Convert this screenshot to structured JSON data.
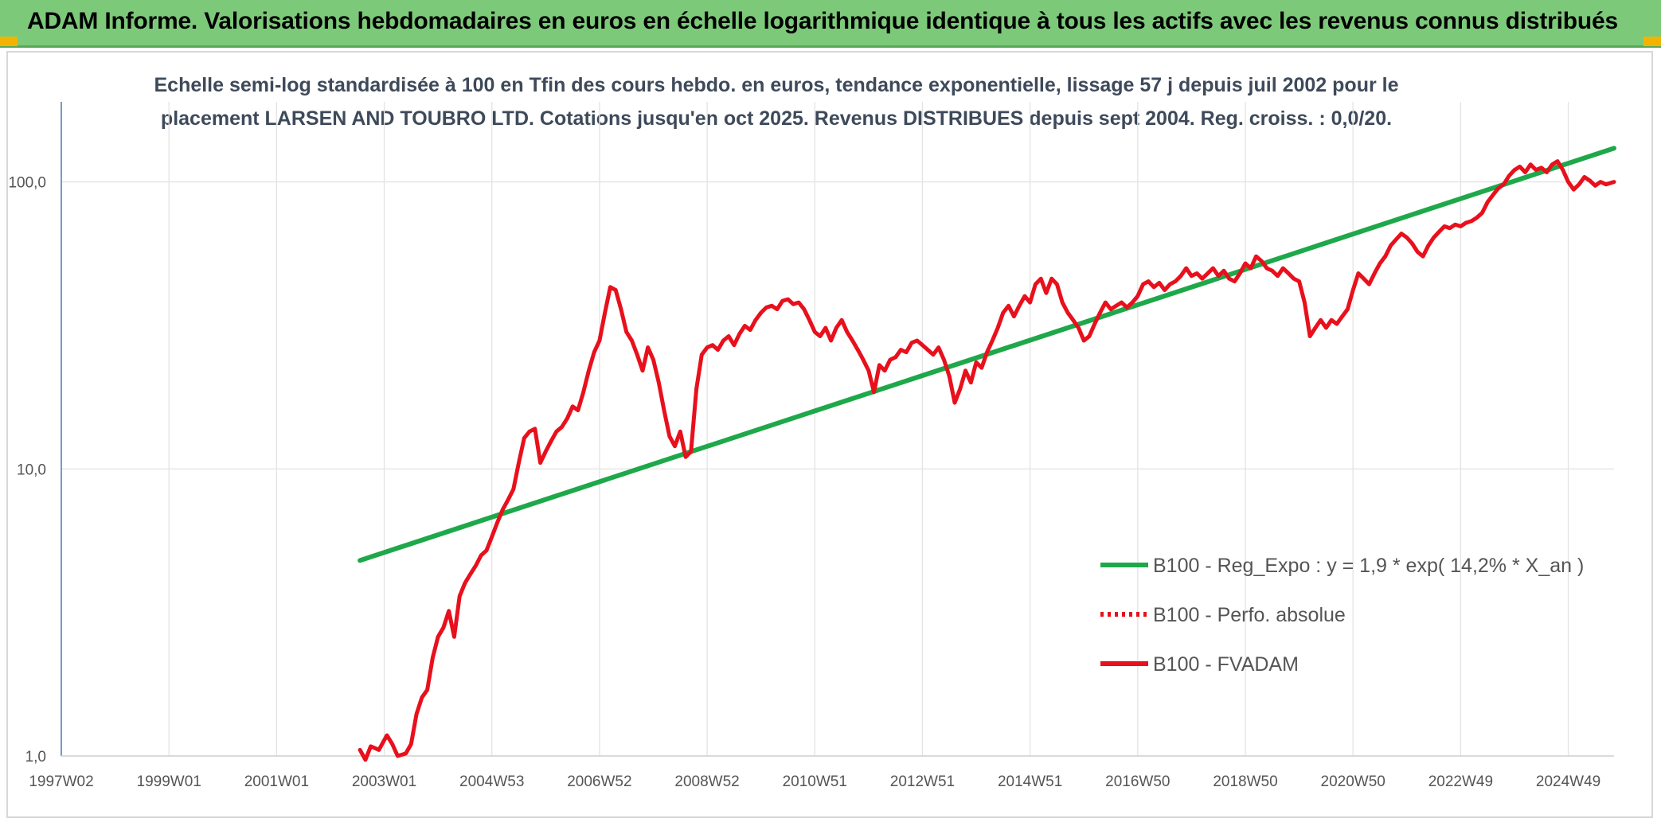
{
  "banner": {
    "title": "ADAM Informe. Valorisations hebdomadaires en euros en échelle logarithmique identique à tous les actifs avec les revenus connus distribués",
    "color": "#7dc97a"
  },
  "chart_data": {
    "type": "line",
    "title_line1": "Echelle semi-log standardisée à 100 en Tfin des cours hebdo. en euros, tendance exponentielle, lissage 57 j depuis juil 2002 pour le",
    "title_line2": "placement LARSEN AND TOUBRO LTD. Cotations jusqu'en oct 2025. Revenus DISTRIBUES depuis sept 2004. Reg. croiss. : 0,0/20.",
    "y_scale": "log",
    "ylim": [
      1,
      190
    ],
    "y_ticks": [
      {
        "value": 1,
        "label": "1,0"
      },
      {
        "value": 10,
        "label": "10,0"
      },
      {
        "value": 100,
        "label": "100,0"
      }
    ],
    "x_range": [
      1997.0,
      2025.85
    ],
    "x_ticks": [
      {
        "value": 1997.0,
        "label": "1997W02"
      },
      {
        "value": 1999.0,
        "label": "1999W01"
      },
      {
        "value": 2001.0,
        "label": "2001W01"
      },
      {
        "value": 2003.0,
        "label": "2003W01"
      },
      {
        "value": 2005.0,
        "label": "2004W53"
      },
      {
        "value": 2007.0,
        "label": "2006W52"
      },
      {
        "value": 2009.0,
        "label": "2008W52"
      },
      {
        "value": 2011.0,
        "label": "2010W51"
      },
      {
        "value": 2013.0,
        "label": "2012W51"
      },
      {
        "value": 2015.0,
        "label": "2014W51"
      },
      {
        "value": 2017.0,
        "label": "2016W50"
      },
      {
        "value": 2019.0,
        "label": "2018W50"
      },
      {
        "value": 2021.0,
        "label": "2020W50"
      },
      {
        "value": 2023.0,
        "label": "2022W49"
      },
      {
        "value": 2025.0,
        "label": "2024W49"
      }
    ],
    "grid": true,
    "legend_position": "bottom-right",
    "series": [
      {
        "name": "B100 - Reg_Expo : y = 1,9 * exp( 14,2% *  X_an )",
        "color": "#1ea84a",
        "style": "solid",
        "points": [
          [
            2002.55,
            4.8
          ],
          [
            2025.85,
            131
          ]
        ]
      },
      {
        "name": "B100 - Perfo. absolue",
        "color": "#e8101c",
        "style": "dotted",
        "points": []
      },
      {
        "name": "B100 - FVADAM",
        "color": "#e8101c",
        "style": "solid",
        "points": [
          [
            2002.55,
            1.05
          ],
          [
            2002.65,
            0.97
          ],
          [
            2002.75,
            1.08
          ],
          [
            2002.9,
            1.05
          ],
          [
            2003.05,
            1.18
          ],
          [
            2003.15,
            1.1
          ],
          [
            2003.25,
            1.0
          ],
          [
            2003.4,
            1.02
          ],
          [
            2003.5,
            1.1
          ],
          [
            2003.6,
            1.4
          ],
          [
            2003.7,
            1.6
          ],
          [
            2003.8,
            1.7
          ],
          [
            2003.9,
            2.2
          ],
          [
            2004.0,
            2.6
          ],
          [
            2004.1,
            2.8
          ],
          [
            2004.2,
            3.2
          ],
          [
            2004.3,
            2.6
          ],
          [
            2004.4,
            3.6
          ],
          [
            2004.5,
            4.0
          ],
          [
            2004.6,
            4.3
          ],
          [
            2004.7,
            4.6
          ],
          [
            2004.8,
            5.0
          ],
          [
            2004.9,
            5.2
          ],
          [
            2005.0,
            5.8
          ],
          [
            2005.1,
            6.5
          ],
          [
            2005.2,
            7.2
          ],
          [
            2005.3,
            7.8
          ],
          [
            2005.4,
            8.5
          ],
          [
            2005.5,
            10.5
          ],
          [
            2005.6,
            12.8
          ],
          [
            2005.7,
            13.5
          ],
          [
            2005.8,
            13.8
          ],
          [
            2005.9,
            10.5
          ],
          [
            2006.0,
            11.5
          ],
          [
            2006.1,
            12.5
          ],
          [
            2006.2,
            13.5
          ],
          [
            2006.3,
            14.0
          ],
          [
            2006.4,
            15.0
          ],
          [
            2006.5,
            16.5
          ],
          [
            2006.6,
            16.0
          ],
          [
            2006.7,
            18.5
          ],
          [
            2006.8,
            22.0
          ],
          [
            2006.9,
            25.5
          ],
          [
            2007.0,
            28.0
          ],
          [
            2007.1,
            35.0
          ],
          [
            2007.2,
            43.0
          ],
          [
            2007.3,
            42.0
          ],
          [
            2007.4,
            36.0
          ],
          [
            2007.5,
            30.0
          ],
          [
            2007.6,
            28.0
          ],
          [
            2007.7,
            25.0
          ],
          [
            2007.8,
            22.0
          ],
          [
            2007.9,
            26.5
          ],
          [
            2008.0,
            24.0
          ],
          [
            2008.1,
            20.0
          ],
          [
            2008.2,
            16.0
          ],
          [
            2008.3,
            13.0
          ],
          [
            2008.4,
            12.0
          ],
          [
            2008.5,
            13.5
          ],
          [
            2008.6,
            11.0
          ],
          [
            2008.7,
            11.5
          ],
          [
            2008.8,
            19.0
          ],
          [
            2008.9,
            25.0
          ],
          [
            2009.0,
            26.5
          ],
          [
            2009.1,
            27.0
          ],
          [
            2009.2,
            26.0
          ],
          [
            2009.3,
            28.0
          ],
          [
            2009.4,
            29.0
          ],
          [
            2009.5,
            27.0
          ],
          [
            2009.6,
            29.5
          ],
          [
            2009.7,
            31.5
          ],
          [
            2009.8,
            30.5
          ],
          [
            2009.9,
            33.0
          ],
          [
            2010.0,
            35.0
          ],
          [
            2010.1,
            36.5
          ],
          [
            2010.2,
            37.0
          ],
          [
            2010.3,
            36.0
          ],
          [
            2010.4,
            38.5
          ],
          [
            2010.5,
            39.0
          ],
          [
            2010.6,
            37.5
          ],
          [
            2010.7,
            38.0
          ],
          [
            2010.8,
            36.0
          ],
          [
            2010.9,
            33.0
          ],
          [
            2011.0,
            30.0
          ],
          [
            2011.1,
            29.0
          ],
          [
            2011.2,
            31.0
          ],
          [
            2011.3,
            28.0
          ],
          [
            2011.4,
            31.0
          ],
          [
            2011.5,
            33.0
          ],
          [
            2011.6,
            30.0
          ],
          [
            2011.7,
            28.0
          ],
          [
            2011.8,
            26.0
          ],
          [
            2011.9,
            24.0
          ],
          [
            2012.0,
            22.0
          ],
          [
            2012.1,
            18.5
          ],
          [
            2012.2,
            23.0
          ],
          [
            2012.3,
            22.0
          ],
          [
            2012.4,
            24.0
          ],
          [
            2012.5,
            24.5
          ],
          [
            2012.6,
            26.0
          ],
          [
            2012.7,
            25.5
          ],
          [
            2012.8,
            27.5
          ],
          [
            2012.9,
            28.0
          ],
          [
            2013.0,
            27.0
          ],
          [
            2013.1,
            26.0
          ],
          [
            2013.2,
            25.0
          ],
          [
            2013.3,
            26.5
          ],
          [
            2013.4,
            24.0
          ],
          [
            2013.5,
            21.0
          ],
          [
            2013.6,
            17.0
          ],
          [
            2013.7,
            19.0
          ],
          [
            2013.8,
            22.0
          ],
          [
            2013.9,
            20.0
          ],
          [
            2014.0,
            23.5
          ],
          [
            2014.1,
            22.5
          ],
          [
            2014.2,
            25.5
          ],
          [
            2014.3,
            28.0
          ],
          [
            2014.4,
            31.0
          ],
          [
            2014.5,
            35.0
          ],
          [
            2014.6,
            37.0
          ],
          [
            2014.7,
            34.0
          ],
          [
            2014.8,
            37.0
          ],
          [
            2014.9,
            40.0
          ],
          [
            2015.0,
            38.0
          ],
          [
            2015.1,
            44.0
          ],
          [
            2015.2,
            46.0
          ],
          [
            2015.3,
            41.0
          ],
          [
            2015.4,
            46.0
          ],
          [
            2015.5,
            44.0
          ],
          [
            2015.6,
            38.0
          ],
          [
            2015.7,
            35.0
          ],
          [
            2015.8,
            33.0
          ],
          [
            2015.9,
            31.0
          ],
          [
            2016.0,
            28.0
          ],
          [
            2016.1,
            29.0
          ],
          [
            2016.2,
            32.0
          ],
          [
            2016.3,
            35.0
          ],
          [
            2016.4,
            38.0
          ],
          [
            2016.5,
            36.0
          ],
          [
            2016.6,
            37.0
          ],
          [
            2016.7,
            38.0
          ],
          [
            2016.8,
            36.5
          ],
          [
            2016.9,
            38.0
          ],
          [
            2017.0,
            40.0
          ],
          [
            2017.1,
            44.0
          ],
          [
            2017.2,
            45.0
          ],
          [
            2017.3,
            43.0
          ],
          [
            2017.4,
            44.5
          ],
          [
            2017.5,
            42.0
          ],
          [
            2017.6,
            44.0
          ],
          [
            2017.7,
            45.0
          ],
          [
            2017.8,
            47.0
          ],
          [
            2017.9,
            50.0
          ],
          [
            2018.0,
            47.0
          ],
          [
            2018.1,
            48.0
          ],
          [
            2018.2,
            46.0
          ],
          [
            2018.3,
            48.0
          ],
          [
            2018.4,
            50.0
          ],
          [
            2018.5,
            47.0
          ],
          [
            2018.6,
            49.0
          ],
          [
            2018.7,
            46.0
          ],
          [
            2018.8,
            45.0
          ],
          [
            2018.9,
            48.0
          ],
          [
            2019.0,
            52.0
          ],
          [
            2019.1,
            50.0
          ],
          [
            2019.2,
            55.0
          ],
          [
            2019.3,
            53.0
          ],
          [
            2019.4,
            50.0
          ],
          [
            2019.5,
            49.0
          ],
          [
            2019.6,
            47.0
          ],
          [
            2019.7,
            50.0
          ],
          [
            2019.8,
            48.0
          ],
          [
            2019.9,
            46.0
          ],
          [
            2020.0,
            45.0
          ],
          [
            2020.1,
            38.0
          ],
          [
            2020.2,
            29.0
          ],
          [
            2020.3,
            31.0
          ],
          [
            2020.4,
            33.0
          ],
          [
            2020.5,
            31.0
          ],
          [
            2020.6,
            33.0
          ],
          [
            2020.7,
            32.0
          ],
          [
            2020.8,
            34.0
          ],
          [
            2020.9,
            36.0
          ],
          [
            2021.0,
            42.0
          ],
          [
            2021.1,
            48.0
          ],
          [
            2021.2,
            46.0
          ],
          [
            2021.3,
            44.0
          ],
          [
            2021.4,
            48.0
          ],
          [
            2021.5,
            52.0
          ],
          [
            2021.6,
            55.0
          ],
          [
            2021.7,
            60.0
          ],
          [
            2021.8,
            63.0
          ],
          [
            2021.9,
            66.0
          ],
          [
            2022.0,
            64.0
          ],
          [
            2022.1,
            61.0
          ],
          [
            2022.2,
            57.0
          ],
          [
            2022.3,
            55.0
          ],
          [
            2022.4,
            60.0
          ],
          [
            2022.5,
            64.0
          ],
          [
            2022.6,
            67.0
          ],
          [
            2022.7,
            70.0
          ],
          [
            2022.8,
            69.0
          ],
          [
            2022.9,
            71.0
          ],
          [
            2023.0,
            70.0
          ],
          [
            2023.1,
            72.0
          ],
          [
            2023.2,
            73.0
          ],
          [
            2023.3,
            75.0
          ],
          [
            2023.4,
            78.0
          ],
          [
            2023.5,
            85.0
          ],
          [
            2023.6,
            90.0
          ],
          [
            2023.7,
            95.0
          ],
          [
            2023.8,
            98.0
          ],
          [
            2023.9,
            105.0
          ],
          [
            2024.0,
            110.0
          ],
          [
            2024.1,
            113.0
          ],
          [
            2024.2,
            108.0
          ],
          [
            2024.3,
            115.0
          ],
          [
            2024.4,
            110.0
          ],
          [
            2024.5,
            112.0
          ],
          [
            2024.6,
            108.0
          ],
          [
            2024.7,
            115.0
          ],
          [
            2024.8,
            118.0
          ],
          [
            2024.9,
            110.0
          ],
          [
            2025.0,
            100.0
          ],
          [
            2025.1,
            94.0
          ],
          [
            2025.2,
            98.0
          ],
          [
            2025.3,
            104.0
          ],
          [
            2025.4,
            101.0
          ],
          [
            2025.5,
            97.0
          ],
          [
            2025.6,
            100.0
          ],
          [
            2025.7,
            98.0
          ],
          [
            2025.85,
            100.0
          ]
        ]
      }
    ]
  }
}
